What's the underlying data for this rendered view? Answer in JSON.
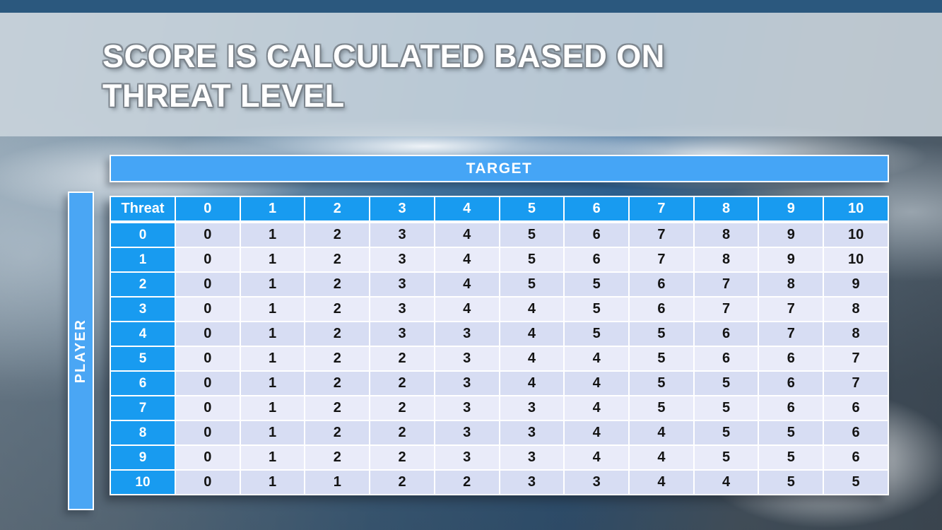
{
  "slide": {
    "title": {
      "line1": "SCORE IS CALCULATED BASED ON",
      "line2": "THREAT LEVEL"
    }
  },
  "matrix": {
    "target_label": "TARGET",
    "player_label": "PLAYER",
    "corner_label": "Threat",
    "col_headers": [
      "0",
      "1",
      "2",
      "3",
      "4",
      "5",
      "6",
      "7",
      "8",
      "9",
      "10"
    ],
    "rows": [
      {
        "header": "0",
        "values": [
          "0",
          "1",
          "2",
          "3",
          "4",
          "5",
          "6",
          "7",
          "8",
          "9",
          "10"
        ]
      },
      {
        "header": "1",
        "values": [
          "0",
          "1",
          "2",
          "3",
          "4",
          "5",
          "6",
          "7",
          "8",
          "9",
          "10"
        ]
      },
      {
        "header": "2",
        "values": [
          "0",
          "1",
          "2",
          "3",
          "4",
          "5",
          "5",
          "6",
          "7",
          "8",
          "9"
        ]
      },
      {
        "header": "3",
        "values": [
          "0",
          "1",
          "2",
          "3",
          "4",
          "4",
          "5",
          "6",
          "7",
          "7",
          "8"
        ]
      },
      {
        "header": "4",
        "values": [
          "0",
          "1",
          "2",
          "3",
          "3",
          "4",
          "5",
          "5",
          "6",
          "7",
          "8"
        ]
      },
      {
        "header": "5",
        "values": [
          "0",
          "1",
          "2",
          "2",
          "3",
          "4",
          "4",
          "5",
          "6",
          "6",
          "7"
        ]
      },
      {
        "header": "6",
        "values": [
          "0",
          "1",
          "2",
          "2",
          "3",
          "4",
          "4",
          "5",
          "5",
          "6",
          "7"
        ]
      },
      {
        "header": "7",
        "values": [
          "0",
          "1",
          "2",
          "2",
          "3",
          "3",
          "4",
          "5",
          "5",
          "6",
          "6"
        ]
      },
      {
        "header": "8",
        "values": [
          "0",
          "1",
          "2",
          "2",
          "3",
          "3",
          "4",
          "4",
          "5",
          "5",
          "6"
        ]
      },
      {
        "header": "9",
        "values": [
          "0",
          "1",
          "2",
          "2",
          "3",
          "3",
          "4",
          "4",
          "5",
          "5",
          "6"
        ]
      },
      {
        "header": "10",
        "values": [
          "0",
          "1",
          "1",
          "2",
          "2",
          "3",
          "3",
          "4",
          "4",
          "5",
          "5"
        ]
      }
    ]
  },
  "colors": {
    "top_bar": "#2b587e",
    "title_band": "#cbd5dd",
    "axis_bar_blue": "#45a5f6",
    "header_cell_blue": "#189bf0",
    "row_band_dark": "#d7ddf3",
    "row_band_light": "#e9ebf9",
    "grid_lines": "#ffffff",
    "title_text": "#ffffff",
    "body_text": "#141414"
  },
  "chart_data": {
    "type": "table",
    "title": "Score matrix: player threat level vs target threat level",
    "col_axis_label": "TARGET",
    "row_axis_label": "PLAYER",
    "corner_label": "Threat",
    "columns": [
      0,
      1,
      2,
      3,
      4,
      5,
      6,
      7,
      8,
      9,
      10
    ],
    "row_headers": [
      0,
      1,
      2,
      3,
      4,
      5,
      6,
      7,
      8,
      9,
      10
    ],
    "values": [
      [
        0,
        1,
        2,
        3,
        4,
        5,
        6,
        7,
        8,
        9,
        10
      ],
      [
        0,
        1,
        2,
        3,
        4,
        5,
        6,
        7,
        8,
        9,
        10
      ],
      [
        0,
        1,
        2,
        3,
        4,
        5,
        5,
        6,
        7,
        8,
        9
      ],
      [
        0,
        1,
        2,
        3,
        4,
        4,
        5,
        6,
        7,
        7,
        8
      ],
      [
        0,
        1,
        2,
        3,
        3,
        4,
        5,
        5,
        6,
        7,
        8
      ],
      [
        0,
        1,
        2,
        2,
        3,
        4,
        4,
        5,
        6,
        6,
        7
      ],
      [
        0,
        1,
        2,
        2,
        3,
        4,
        4,
        5,
        5,
        6,
        7
      ],
      [
        0,
        1,
        2,
        2,
        3,
        3,
        4,
        5,
        5,
        6,
        6
      ],
      [
        0,
        1,
        2,
        2,
        3,
        3,
        4,
        4,
        5,
        5,
        6
      ],
      [
        0,
        1,
        2,
        2,
        3,
        3,
        4,
        4,
        5,
        5,
        6
      ],
      [
        0,
        1,
        1,
        2,
        2,
        3,
        3,
        4,
        4,
        5,
        5
      ]
    ]
  }
}
